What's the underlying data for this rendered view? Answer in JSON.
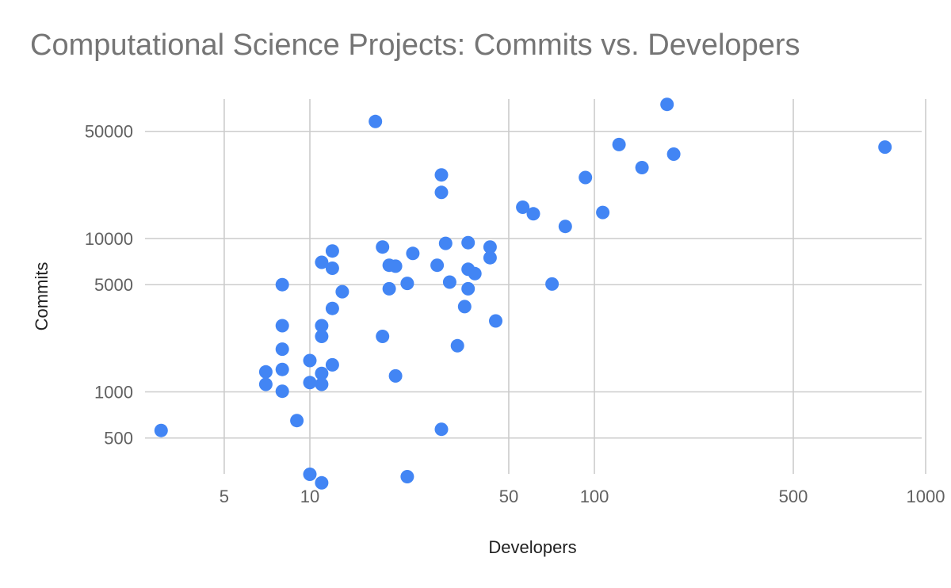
{
  "chart_data": {
    "type": "scatter",
    "title": "Computational Science Projects: Commits vs. Developers",
    "xlabel": "Developers",
    "ylabel": "Commits",
    "x_scale": "log",
    "y_scale": "log",
    "xlim": [
      3,
      1150
    ],
    "ylim": [
      250,
      80000
    ],
    "x_ticks": [
      5,
      10,
      50,
      100,
      500,
      1000
    ],
    "y_ticks": [
      500,
      1000,
      5000,
      10000,
      50000
    ],
    "grid": true,
    "legend": "none",
    "color": "#4285f4",
    "points": [
      {
        "x": 3,
        "y": 560
      },
      {
        "x": 7,
        "y": 1350
      },
      {
        "x": 7,
        "y": 1120
      },
      {
        "x": 8,
        "y": 5000
      },
      {
        "x": 8,
        "y": 2700
      },
      {
        "x": 8,
        "y": 1900
      },
      {
        "x": 8,
        "y": 1400
      },
      {
        "x": 8,
        "y": 1010
      },
      {
        "x": 9,
        "y": 650
      },
      {
        "x": 10,
        "y": 1600
      },
      {
        "x": 10,
        "y": 1150
      },
      {
        "x": 10,
        "y": 290
      },
      {
        "x": 11,
        "y": 7000
      },
      {
        "x": 11,
        "y": 2700
      },
      {
        "x": 11,
        "y": 2300
      },
      {
        "x": 11,
        "y": 1320
      },
      {
        "x": 11,
        "y": 1120
      },
      {
        "x": 11,
        "y": 255
      },
      {
        "x": 12,
        "y": 8300
      },
      {
        "x": 12,
        "y": 6400
      },
      {
        "x": 12,
        "y": 3500
      },
      {
        "x": 12,
        "y": 1500
      },
      {
        "x": 13,
        "y": 4500
      },
      {
        "x": 17,
        "y": 58000
      },
      {
        "x": 18,
        "y": 8800
      },
      {
        "x": 18,
        "y": 2300
      },
      {
        "x": 19,
        "y": 6700
      },
      {
        "x": 19,
        "y": 4700
      },
      {
        "x": 20,
        "y": 6600
      },
      {
        "x": 20,
        "y": 1270
      },
      {
        "x": 22,
        "y": 5100
      },
      {
        "x": 22,
        "y": 280
      },
      {
        "x": 23,
        "y": 8000
      },
      {
        "x": 28,
        "y": 6700
      },
      {
        "x": 29,
        "y": 26000
      },
      {
        "x": 29,
        "y": 20000
      },
      {
        "x": 29,
        "y": 570
      },
      {
        "x": 30,
        "y": 9300
      },
      {
        "x": 31,
        "y": 5200
      },
      {
        "x": 33,
        "y": 2000
      },
      {
        "x": 35,
        "y": 3600
      },
      {
        "x": 36,
        "y": 9400
      },
      {
        "x": 36,
        "y": 6300
      },
      {
        "x": 36,
        "y": 4700
      },
      {
        "x": 38,
        "y": 5900
      },
      {
        "x": 43,
        "y": 8800
      },
      {
        "x": 43,
        "y": 7500
      },
      {
        "x": 45,
        "y": 2900
      },
      {
        "x": 56,
        "y": 16000
      },
      {
        "x": 61,
        "y": 14500
      },
      {
        "x": 71,
        "y": 5050
      },
      {
        "x": 79,
        "y": 12000
      },
      {
        "x": 93,
        "y": 25000
      },
      {
        "x": 107,
        "y": 14800
      },
      {
        "x": 122,
        "y": 41000
      },
      {
        "x": 147,
        "y": 29000
      },
      {
        "x": 180,
        "y": 75000
      },
      {
        "x": 190,
        "y": 35500
      },
      {
        "x": 1050,
        "y": 39500
      }
    ]
  }
}
